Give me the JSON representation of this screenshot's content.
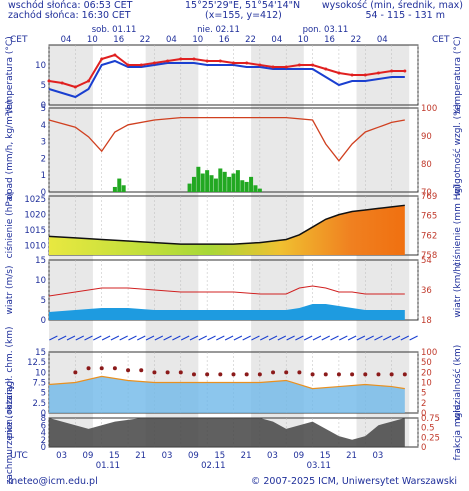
{
  "header": {
    "sunrise": "wschód słońca: 06:53 CET",
    "sunset": "zachód słońca: 16:30 CET",
    "coords": "15°25'29\"E, 51°54'14\"N",
    "grid": "(x=155, y=412)",
    "height_title": "wysokość (min, średnik, max)",
    "height_values": "54 - 115 - 131 m",
    "tz_left": "CET",
    "tz_right": "CET",
    "utc": "UTC"
  },
  "footer": {
    "email": "meteo@icm.edu.pl",
    "copyright": "© 2007-2025 ICM, Uniwersytet Warszawski"
  },
  "colors": {
    "axis": "#1f2f9a",
    "grid_shade": "#d8d8d8",
    "temp_red": "#e02020",
    "temp_blue": "#1a3fd0",
    "humidity": "#d04020",
    "precip": "#22a822",
    "wind_fill": "#1e9be0",
    "gust": "#d02020",
    "vis_fill": "#6fb8e8",
    "cloud_dark": "#444444"
  },
  "chart_data": [
    {
      "type": "line",
      "panel": "temperatura",
      "ylabel": "temperatura (°C)",
      "ylabel_right": "temperatura (°C)",
      "ylim": [
        0,
        15
      ],
      "yticks": [
        0,
        5,
        10
      ],
      "x": [
        0,
        3,
        6,
        9,
        12,
        15,
        18,
        21,
        24,
        27,
        30,
        33,
        36,
        39,
        42,
        45,
        48,
        51,
        54,
        57,
        60,
        63,
        66,
        69,
        72,
        75,
        78,
        81
      ],
      "series": [
        {
          "values": [
            6,
            5.5,
            4.5,
            6,
            11.5,
            12.5,
            10,
            10,
            10.5,
            11,
            11.5,
            11.5,
            11,
            11,
            10.5,
            10.5,
            10,
            9.5,
            9.5,
            10,
            10,
            9,
            8,
            7.5,
            7.5,
            8,
            8.5,
            8.5
          ]
        },
        {
          "values": [
            4,
            3,
            2,
            4,
            10,
            11,
            9.5,
            9.5,
            10,
            10.5,
            10.5,
            10.5,
            10,
            10,
            10,
            9.5,
            9.5,
            9,
            9,
            9,
            9,
            7,
            5,
            6,
            6,
            6.5,
            7,
            7
          ]
        }
      ]
    },
    {
      "type": "bar",
      "panel": "opad",
      "ylabel": "opad (mm/h, kg/m²/h)",
      "ylabel_right": "wilgotność wzgl. (%)",
      "ylim": [
        0,
        5
      ],
      "yticks": [
        0,
        1,
        2,
        3,
        4,
        5
      ],
      "yticks_right": [
        70,
        80,
        90,
        100
      ],
      "precip_x": [
        15,
        16,
        17,
        32,
        33,
        34,
        35,
        36,
        37,
        38,
        39,
        40,
        41,
        42,
        43,
        44,
        45,
        46,
        47,
        48
      ],
      "precip_values": [
        0.3,
        0.8,
        0.4,
        0.5,
        0.9,
        1.5,
        1.1,
        1.3,
        1.0,
        0.8,
        1.4,
        1.2,
        0.9,
        1.1,
        1.3,
        0.7,
        0.6,
        0.9,
        0.4,
        0.2
      ],
      "humidity_x": [
        0,
        6,
        9,
        12,
        15,
        18,
        24,
        30,
        36,
        42,
        48,
        54,
        60,
        63,
        66,
        69,
        72,
        75,
        78,
        81
      ],
      "humidity_values": [
        95,
        92,
        88,
        82,
        90,
        93,
        95,
        96,
        96,
        96,
        96,
        96,
        95,
        85,
        78,
        85,
        90,
        92,
        94,
        95
      ]
    },
    {
      "type": "area",
      "panel": "ciśnienie",
      "ylabel": "ciśnienie (hPa)",
      "ylabel_right": "ciśnienie (mm Hg)",
      "ylim": [
        1007,
        1026
      ],
      "yticks": [
        1010,
        1015,
        1020,
        1025
      ],
      "yticks_right": [
        758,
        762,
        765,
        769
      ],
      "x": [
        0,
        6,
        12,
        18,
        24,
        30,
        36,
        42,
        48,
        54,
        57,
        60,
        63,
        66,
        69,
        72,
        75,
        78,
        81
      ],
      "values": [
        1013,
        1012.5,
        1012,
        1011.5,
        1011,
        1010.5,
        1010.5,
        1010.5,
        1011,
        1012,
        1013.5,
        1016,
        1018.5,
        1020,
        1021,
        1021.5,
        1022,
        1022.5,
        1023
      ]
    },
    {
      "type": "area",
      "panel": "wiatr",
      "ylabel": "wiatr (m/s)",
      "ylabel_right": "wiatr (km/h)",
      "ylim": [
        0,
        15
      ],
      "yticks": [
        0,
        5,
        10,
        15
      ],
      "yticks_right": [
        18,
        36,
        54
      ],
      "x": [
        0,
        6,
        12,
        18,
        24,
        30,
        36,
        42,
        48,
        54,
        57,
        60,
        63,
        66,
        69,
        72,
        75,
        78,
        81
      ],
      "wind": [
        2,
        2.5,
        3,
        3,
        2.5,
        2.5,
        2.5,
        2.5,
        2.5,
        2.5,
        3,
        4,
        4,
        3.5,
        3,
        2.5,
        2.5,
        2.5,
        2.5
      ],
      "gust": [
        6,
        7,
        8,
        8,
        7.5,
        7,
        7,
        7,
        6.5,
        6.5,
        8,
        8.5,
        8,
        7,
        7,
        6.5,
        6.5,
        6.5,
        6.5
      ]
    },
    {
      "type": "scatter",
      "panel": "widzialność",
      "ylabel": "pion. rozciągł. chm. (km)",
      "ylabel_right": "widzialność (km)",
      "ylim": [
        0,
        15
      ],
      "yticks": [
        0,
        2.5,
        5,
        7.5,
        10,
        12.5,
        15
      ],
      "yticks_right": [
        0,
        2,
        5,
        10,
        20,
        50,
        100
      ],
      "vis_x": [
        0,
        6,
        12,
        18,
        24,
        30,
        36,
        42,
        48,
        54,
        60,
        66,
        72,
        78,
        81
      ],
      "vis_values": [
        7,
        7.5,
        9,
        8,
        7.5,
        7.5,
        7.5,
        7.5,
        7.5,
        8,
        6,
        6.5,
        7,
        6.5,
        6
      ],
      "cloud_top_x": [
        6,
        9,
        12,
        15,
        18,
        21,
        24,
        27,
        30,
        33,
        36,
        39,
        42,
        45,
        48,
        51,
        54,
        57,
        60,
        63,
        66,
        69,
        72,
        75,
        78,
        81
      ],
      "cloud_top_values": [
        10,
        11,
        11,
        11,
        10.5,
        10.5,
        10,
        10,
        10,
        9.5,
        9.5,
        9.5,
        9.5,
        9.5,
        9.5,
        10,
        10,
        10,
        9.5,
        9.5,
        9.5,
        9.5,
        9.5,
        9.5,
        9.5,
        9.5
      ]
    },
    {
      "type": "area",
      "panel": "zachmurzenie",
      "ylabel": "zachmurzenie (oktany)",
      "ylabel_right": "frakcja mgła",
      "ylim": [
        0,
        8
      ],
      "yticks": [
        0,
        2,
        4,
        6,
        8
      ],
      "yticks_right": [
        0,
        0.25,
        0.5,
        0.75
      ],
      "x": [
        0,
        3,
        6,
        9,
        12,
        15,
        18,
        21,
        24,
        27,
        30,
        33,
        36,
        39,
        42,
        45,
        48,
        51,
        54,
        57,
        60,
        63,
        66,
        69,
        72,
        75,
        78,
        81
      ],
      "values": [
        8,
        7,
        6,
        5,
        6,
        7,
        7.5,
        8,
        8,
        8,
        8,
        8,
        8,
        8,
        8,
        8,
        8,
        7,
        5,
        6,
        7,
        5,
        3,
        2,
        3,
        6,
        7,
        8
      ]
    }
  ],
  "time_axis": {
    "top_hours": [
      "04",
      "10",
      "16",
      "22",
      "04",
      "10",
      "16",
      "22",
      "04",
      "10",
      "16",
      "22",
      "04"
    ],
    "bottom_hours": [
      "03",
      "09",
      "15",
      "21",
      "03",
      "09",
      "15",
      "21",
      "03",
      "09",
      "15",
      "21",
      "03"
    ],
    "top_days": [
      "sob. 01.11",
      "nie. 02.11",
      "pon. 03.11"
    ],
    "bottom_days": [
      "01.11",
      "02.11",
      "03.11"
    ]
  }
}
